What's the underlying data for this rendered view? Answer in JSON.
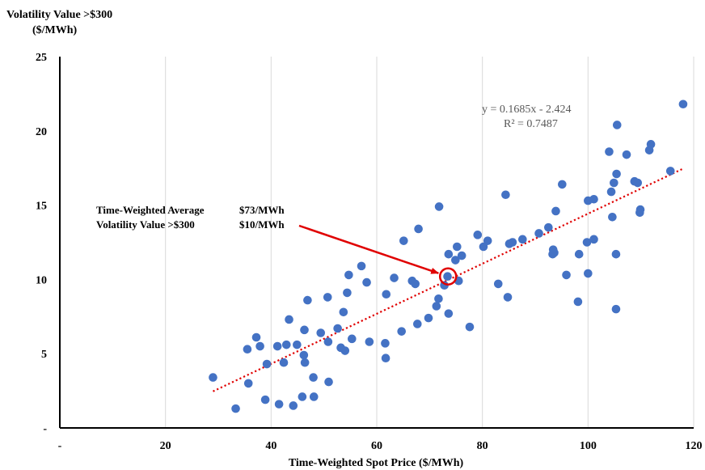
{
  "chart_data": {
    "type": "scatter",
    "ylabel_line1": "Volatility Value >$300",
    "ylabel_line2": "($/MWh)",
    "xlabel": "Time-Weighted Spot Price ($/MWh)",
    "xlim": [
      0,
      120
    ],
    "ylim": [
      0,
      25
    ],
    "x_ticks": [
      {
        "value": 0,
        "label": "-"
      },
      {
        "value": 20,
        "label": "20"
      },
      {
        "value": 40,
        "label": "40"
      },
      {
        "value": 60,
        "label": "60"
      },
      {
        "value": 80,
        "label": "80"
      },
      {
        "value": 100,
        "label": "100"
      },
      {
        "value": 120,
        "label": "120"
      }
    ],
    "y_ticks": [
      {
        "value": 0,
        "label": "-"
      },
      {
        "value": 5,
        "label": "5"
      },
      {
        "value": 10,
        "label": "10"
      },
      {
        "value": 15,
        "label": "15"
      },
      {
        "value": 20,
        "label": "20"
      },
      {
        "value": 25,
        "label": "25"
      }
    ],
    "grid": {
      "x": true,
      "y": false
    },
    "point_color": "#4472C4",
    "trendline": {
      "slope": 0.1685,
      "intercept": -2.424,
      "x_range": [
        29,
        118
      ],
      "color": "#E00000",
      "equation": "y = 0.1685x - 2.424",
      "r_squared": "R² = 0.7487"
    },
    "annotation": {
      "line1_label": "Time-Weighted Average",
      "line1_value": "$73/MWh",
      "line2_label": "Volatility Value >$300",
      "line2_value": "$10/MWh",
      "highlight_point": {
        "x": 73.5,
        "y": 10.2
      },
      "arrow_color": "#E00000"
    },
    "points": [
      {
        "x": 29,
        "y": 3.4
      },
      {
        "x": 33.3,
        "y": 1.3
      },
      {
        "x": 35.5,
        "y": 5.3
      },
      {
        "x": 35.7,
        "y": 3.0
      },
      {
        "x": 37.2,
        "y": 6.1
      },
      {
        "x": 37.9,
        "y": 5.5
      },
      {
        "x": 38.9,
        "y": 1.9
      },
      {
        "x": 39.2,
        "y": 4.3
      },
      {
        "x": 41.2,
        "y": 5.5
      },
      {
        "x": 41.5,
        "y": 1.6
      },
      {
        "x": 42.4,
        "y": 4.4
      },
      {
        "x": 42.9,
        "y": 5.6
      },
      {
        "x": 43.4,
        "y": 7.3
      },
      {
        "x": 44.2,
        "y": 1.5
      },
      {
        "x": 44.9,
        "y": 5.6
      },
      {
        "x": 45.9,
        "y": 2.1
      },
      {
        "x": 46.2,
        "y": 4.9
      },
      {
        "x": 46.3,
        "y": 6.6
      },
      {
        "x": 46.4,
        "y": 4.4
      },
      {
        "x": 46.9,
        "y": 8.6
      },
      {
        "x": 48.0,
        "y": 3.4
      },
      {
        "x": 48.1,
        "y": 2.1
      },
      {
        "x": 49.4,
        "y": 6.4
      },
      {
        "x": 50.7,
        "y": 8.8
      },
      {
        "x": 50.8,
        "y": 5.8
      },
      {
        "x": 50.9,
        "y": 3.1
      },
      {
        "x": 52.6,
        "y": 6.7
      },
      {
        "x": 53.2,
        "y": 5.4
      },
      {
        "x": 53.7,
        "y": 7.8
      },
      {
        "x": 54.0,
        "y": 5.2
      },
      {
        "x": 54.4,
        "y": 9.1
      },
      {
        "x": 54.7,
        "y": 10.3
      },
      {
        "x": 55.3,
        "y": 6.0
      },
      {
        "x": 57.1,
        "y": 10.9
      },
      {
        "x": 58.1,
        "y": 9.8
      },
      {
        "x": 58.6,
        "y": 5.8
      },
      {
        "x": 61.6,
        "y": 5.7
      },
      {
        "x": 61.7,
        "y": 4.7
      },
      {
        "x": 61.8,
        "y": 9.0
      },
      {
        "x": 63.3,
        "y": 10.1
      },
      {
        "x": 64.7,
        "y": 6.5
      },
      {
        "x": 65.1,
        "y": 12.6
      },
      {
        "x": 66.7,
        "y": 9.9
      },
      {
        "x": 67.3,
        "y": 9.7
      },
      {
        "x": 67.7,
        "y": 7.0
      },
      {
        "x": 67.9,
        "y": 13.4
      },
      {
        "x": 69.8,
        "y": 7.4
      },
      {
        "x": 71.3,
        "y": 8.2
      },
      {
        "x": 71.7,
        "y": 8.7
      },
      {
        "x": 71.8,
        "y": 14.9
      },
      {
        "x": 72.8,
        "y": 9.6
      },
      {
        "x": 73.4,
        "y": 10.2
      },
      {
        "x": 73.6,
        "y": 7.7
      },
      {
        "x": 73.6,
        "y": 11.7
      },
      {
        "x": 74.9,
        "y": 11.3
      },
      {
        "x": 75.2,
        "y": 12.2
      },
      {
        "x": 75.5,
        "y": 9.9
      },
      {
        "x": 76.1,
        "y": 11.6
      },
      {
        "x": 77.6,
        "y": 6.8
      },
      {
        "x": 79.1,
        "y": 13.0
      },
      {
        "x": 80.2,
        "y": 12.2
      },
      {
        "x": 81.0,
        "y": 12.6
      },
      {
        "x": 83.0,
        "y": 9.7
      },
      {
        "x": 84.4,
        "y": 15.7
      },
      {
        "x": 84.8,
        "y": 8.8
      },
      {
        "x": 85.1,
        "y": 12.4
      },
      {
        "x": 85.7,
        "y": 12.5
      },
      {
        "x": 87.6,
        "y": 12.7
      },
      {
        "x": 90.7,
        "y": 13.1
      },
      {
        "x": 92.5,
        "y": 13.5
      },
      {
        "x": 93.3,
        "y": 11.7
      },
      {
        "x": 93.4,
        "y": 12.0
      },
      {
        "x": 93.6,
        "y": 11.8
      },
      {
        "x": 93.9,
        "y": 14.6
      },
      {
        "x": 95.1,
        "y": 16.4
      },
      {
        "x": 95.9,
        "y": 10.3
      },
      {
        "x": 98.1,
        "y": 8.5
      },
      {
        "x": 98.3,
        "y": 11.7
      },
      {
        "x": 99.8,
        "y": 12.5
      },
      {
        "x": 100.0,
        "y": 15.3
      },
      {
        "x": 100.0,
        "y": 10.4
      },
      {
        "x": 101.1,
        "y": 15.4
      },
      {
        "x": 101.1,
        "y": 12.7
      },
      {
        "x": 104.0,
        "y": 18.6
      },
      {
        "x": 104.4,
        "y": 15.9
      },
      {
        "x": 104.6,
        "y": 14.2
      },
      {
        "x": 104.9,
        "y": 16.5
      },
      {
        "x": 105.3,
        "y": 11.7
      },
      {
        "x": 105.3,
        "y": 8.0
      },
      {
        "x": 105.4,
        "y": 17.1
      },
      {
        "x": 105.5,
        "y": 20.4
      },
      {
        "x": 107.3,
        "y": 18.4
      },
      {
        "x": 108.8,
        "y": 16.6
      },
      {
        "x": 109.4,
        "y": 16.5
      },
      {
        "x": 109.8,
        "y": 14.5
      },
      {
        "x": 109.9,
        "y": 14.7
      },
      {
        "x": 111.6,
        "y": 18.7
      },
      {
        "x": 111.9,
        "y": 19.1
      },
      {
        "x": 115.6,
        "y": 17.3
      },
      {
        "x": 118.0,
        "y": 21.8
      }
    ]
  }
}
